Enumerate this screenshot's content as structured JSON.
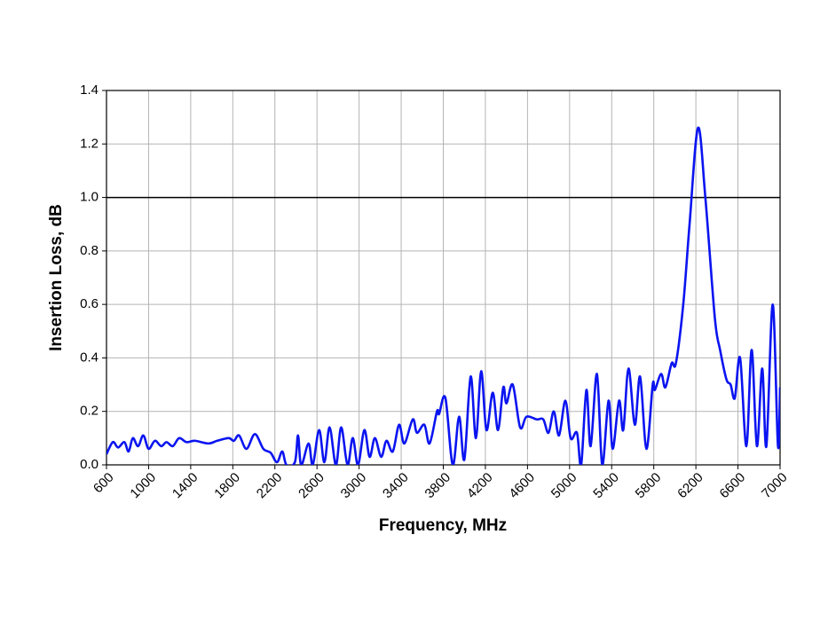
{
  "chart_data": {
    "type": "line",
    "xlabel": "Frequency, MHz",
    "ylabel": "Insertion Loss, dB",
    "x": [
      600,
      660,
      710,
      770,
      810,
      850,
      900,
      950,
      1000,
      1060,
      1120,
      1170,
      1230,
      1290,
      1360,
      1440,
      1570,
      1650,
      1760,
      1810,
      1860,
      1930,
      2010,
      2090,
      2160,
      2220,
      2270,
      2310,
      2390,
      2420,
      2450,
      2520,
      2560,
      2620,
      2670,
      2720,
      2780,
      2830,
      2890,
      2940,
      2990,
      3050,
      3100,
      3150,
      3210,
      3260,
      3320,
      3380,
      3430,
      3510,
      3550,
      3620,
      3670,
      3740,
      3760,
      3820,
      3890,
      3950,
      4000,
      4060,
      4110,
      4160,
      4210,
      4270,
      4320,
      4370,
      4400,
      4460,
      4530,
      4590,
      4690,
      4750,
      4800,
      4850,
      4900,
      4960,
      5010,
      5070,
      5110,
      5160,
      5200,
      5260,
      5310,
      5370,
      5410,
      5470,
      5510,
      5560,
      5620,
      5670,
      5730,
      5790,
      5810,
      5870,
      5910,
      5970,
      6010,
      6080,
      6140,
      6220,
      6290,
      6380,
      6430,
      6490,
      6530,
      6570,
      6620,
      6680,
      6730,
      6780,
      6830,
      6870,
      6930,
      6980,
      7000
    ],
    "series": [
      {
        "name": "Insertion Loss",
        "color": "#0a14f0",
        "values": [
          0.04,
          0.085,
          0.065,
          0.085,
          0.05,
          0.1,
          0.07,
          0.11,
          0.06,
          0.09,
          0.07,
          0.085,
          0.07,
          0.1,
          0.085,
          0.09,
          0.08,
          0.09,
          0.1,
          0.09,
          0.11,
          0.06,
          0.115,
          0.06,
          0.045,
          0.01,
          0.05,
          0.0,
          0.01,
          0.11,
          0.0,
          0.08,
          0.0,
          0.13,
          0.01,
          0.14,
          0.0,
          0.14,
          0.0,
          0.1,
          0.0,
          0.13,
          0.03,
          0.1,
          0.03,
          0.09,
          0.05,
          0.15,
          0.08,
          0.17,
          0.12,
          0.15,
          0.08,
          0.2,
          0.19,
          0.25,
          0.0,
          0.18,
          0.02,
          0.33,
          0.1,
          0.35,
          0.13,
          0.27,
          0.13,
          0.29,
          0.23,
          0.3,
          0.14,
          0.18,
          0.17,
          0.17,
          0.12,
          0.2,
          0.11,
          0.24,
          0.1,
          0.12,
          0.0,
          0.28,
          0.07,
          0.34,
          0.0,
          0.24,
          0.06,
          0.24,
          0.13,
          0.36,
          0.15,
          0.33,
          0.06,
          0.3,
          0.28,
          0.34,
          0.29,
          0.38,
          0.38,
          0.6,
          0.9,
          1.26,
          1.0,
          0.55,
          0.43,
          0.32,
          0.3,
          0.25,
          0.4,
          0.07,
          0.43,
          0.07,
          0.36,
          0.07,
          0.6,
          0.07,
          0.29
        ]
      }
    ],
    "xlim": [
      600,
      7000
    ],
    "xticks": [
      600,
      1000,
      1400,
      1800,
      2200,
      2600,
      3000,
      3400,
      3800,
      4200,
      4600,
      5000,
      5400,
      5800,
      6200,
      6600,
      7000
    ],
    "ylim": [
      0,
      1.4
    ],
    "yticks": [
      {
        "value": 0,
        "label": "0.0"
      },
      0.2,
      0.4,
      0.6,
      0.8,
      {
        "value": 1,
        "label": "1.0"
      },
      1.2,
      1.4
    ],
    "reference_line": 1.0,
    "grid": true
  }
}
